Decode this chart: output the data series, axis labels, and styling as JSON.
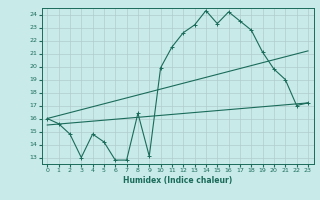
{
  "title": "",
  "xlabel": "Humidex (Indice chaleur)",
  "xlim": [
    -0.5,
    23.5
  ],
  "ylim": [
    12.5,
    24.5
  ],
  "yticks": [
    13,
    14,
    15,
    16,
    17,
    18,
    19,
    20,
    21,
    22,
    23,
    24
  ],
  "xticks": [
    0,
    1,
    2,
    3,
    4,
    5,
    6,
    7,
    8,
    9,
    10,
    11,
    12,
    13,
    14,
    15,
    16,
    17,
    18,
    19,
    20,
    21,
    22,
    23
  ],
  "bg_color": "#c8eae8",
  "grid_color": "#b0cccc",
  "line_color": "#1a6b5a",
  "line1_x": [
    0,
    1,
    2,
    3,
    4,
    5,
    6,
    7,
    8,
    9,
    10,
    11,
    12,
    13,
    14,
    15,
    16,
    17,
    18,
    19,
    20,
    21,
    22,
    23
  ],
  "line1_y": [
    16.0,
    15.6,
    14.8,
    13.0,
    14.8,
    14.2,
    12.8,
    12.8,
    16.4,
    13.1,
    19.9,
    21.5,
    22.6,
    23.2,
    24.3,
    23.3,
    24.2,
    23.5,
    22.8,
    21.1,
    19.8,
    19.0,
    17.0,
    17.2
  ],
  "line2_x": [
    0,
    23
  ],
  "line2_y": [
    15.5,
    17.2
  ],
  "line3_x": [
    0,
    23
  ],
  "line3_y": [
    16.0,
    21.2
  ]
}
